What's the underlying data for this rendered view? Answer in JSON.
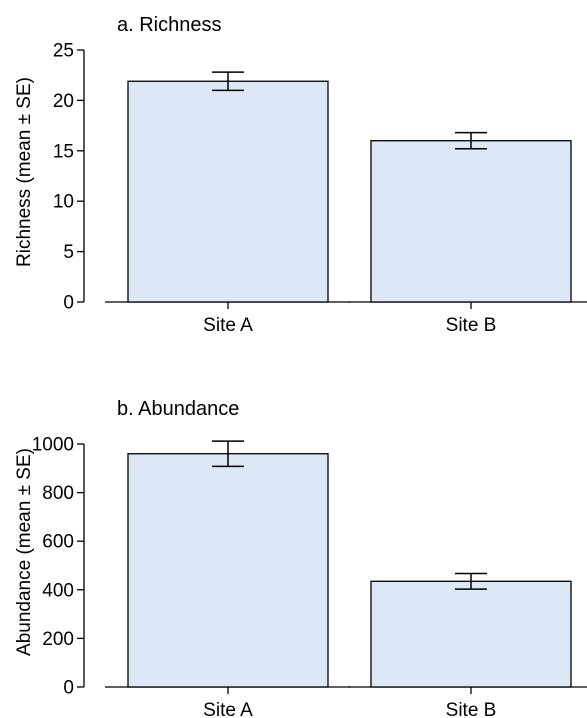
{
  "colors": {
    "bar_fill": "#dce8f5",
    "bar_stroke": "#000000"
  },
  "chart_data": [
    {
      "type": "bar",
      "title": "a. Richness",
      "xlabel": "",
      "ylabel": "Richness (mean ± SE)",
      "categories": [
        "Site A",
        "Site B"
      ],
      "values": [
        21.9,
        16.0
      ],
      "errors": [
        0.9,
        0.8
      ],
      "ylim": [
        0,
        25
      ],
      "yticks": [
        0,
        5,
        10,
        15,
        20,
        25
      ],
      "grid": false
    },
    {
      "type": "bar",
      "title": "b. Abundance",
      "xlabel": "",
      "ylabel": "Abundance (mean ± SE)",
      "categories": [
        "Site A",
        "Site B"
      ],
      "values": [
        960,
        435
      ],
      "errors": [
        52,
        32
      ],
      "ylim": [
        0,
        1000
      ],
      "yticks": [
        0,
        200,
        400,
        600,
        800,
        1000
      ],
      "grid": false
    }
  ]
}
